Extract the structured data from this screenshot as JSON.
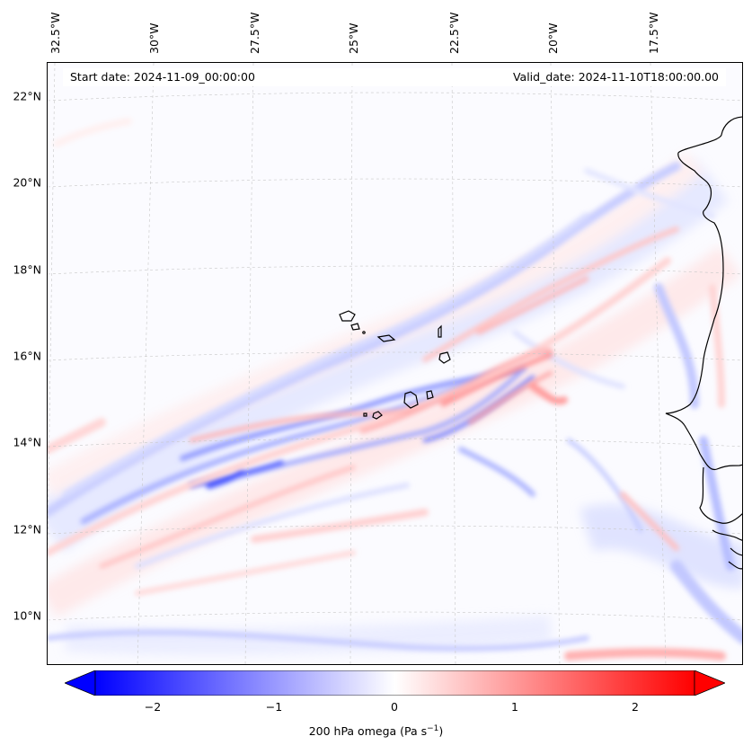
{
  "banner": {
    "start": "Start date: 2024-11-09_00:00:00",
    "valid": "Valid_date: 2024-11-10T18:00:00.00"
  },
  "map": {
    "lat_labels": [
      "22°N",
      "20°N",
      "18°N",
      "16°N",
      "14°N",
      "12°N",
      "10°N"
    ],
    "lon_labels": [
      "32.5°W",
      "30°W",
      "27.5°W",
      "25°W",
      "22.5°W",
      "20°W",
      "17.5°W"
    ],
    "feature_description_colors": {
      "ascent": "#5a6bff",
      "descent": "#ff7a7a",
      "coastline": "#000000"
    }
  },
  "colorbar": {
    "ticks": [
      "−2",
      "−1",
      "0",
      "1",
      "2"
    ],
    "tick_values": [
      -2,
      -1,
      0,
      1,
      2
    ],
    "range": [
      -2.5,
      2.5
    ],
    "label": "200 hPa omega (Pa s",
    "label_sup": "−1",
    "label_end": ")",
    "colormap": "bwr"
  }
}
